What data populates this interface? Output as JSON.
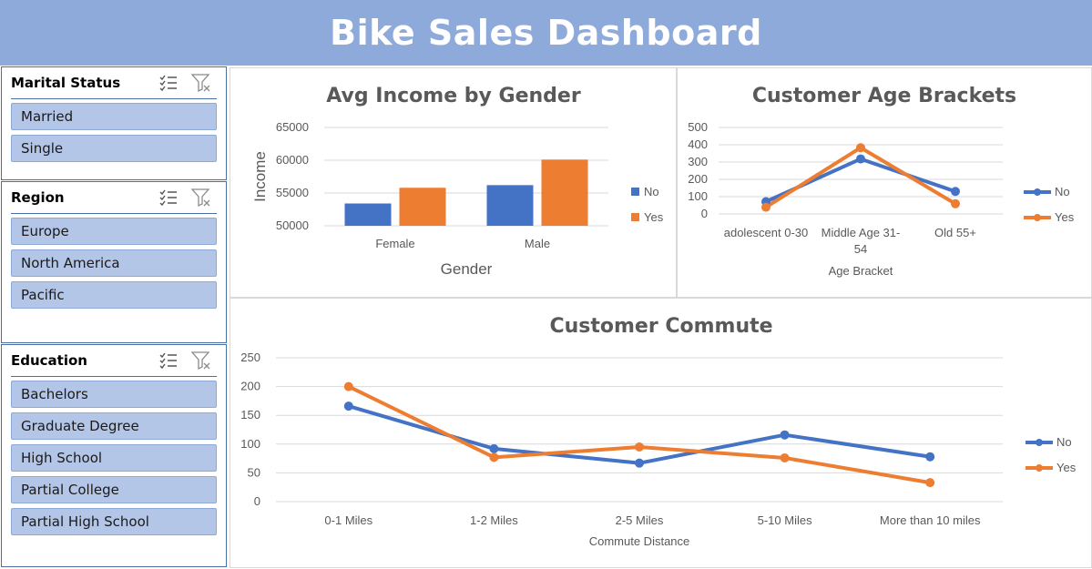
{
  "header": {
    "title": "Bike Sales Dashboard"
  },
  "slicers": {
    "marital": {
      "title": "Marital Status",
      "items": [
        "Married",
        "Single"
      ]
    },
    "region": {
      "title": "Region",
      "items": [
        "Europe",
        "North America",
        "Pacific"
      ]
    },
    "education": {
      "title": "Education",
      "items": [
        "Bachelors",
        "Graduate Degree",
        "High School",
        "Partial College",
        "Partial High School"
      ]
    }
  },
  "colors": {
    "no": "#4472c4",
    "yes": "#ed7d31",
    "header": "#8eaadb",
    "slicer_item": "#b4c6e7"
  },
  "icons": {
    "multi_select": "multi-select-icon",
    "clear_filter": "clear-filter-icon"
  },
  "chart_data": [
    {
      "type": "bar",
      "title": "Avg Income by Gender",
      "xlabel": "Gender",
      "ylabel": "Income",
      "categories": [
        "Female",
        "Male"
      ],
      "series": [
        {
          "name": "No",
          "values": [
            53400,
            56200
          ]
        },
        {
          "name": "Yes",
          "values": [
            55800,
            60100
          ]
        }
      ],
      "ylim": [
        50000,
        65000
      ],
      "yticks": [
        "50000",
        "55000",
        "60000",
        "65000"
      ],
      "grid": true,
      "legend": "right"
    },
    {
      "type": "line",
      "title": "Customer Age Brackets",
      "xlabel": "Age Bracket",
      "ylabel": "",
      "categories": [
        "adolescent 0-30",
        "Middle Age 31-54",
        "Old 55+"
      ],
      "series": [
        {
          "name": "No",
          "values": [
            71,
            318,
            130
          ]
        },
        {
          "name": "Yes",
          "values": [
            39,
            383,
            59
          ]
        }
      ],
      "ylim": [
        0,
        500
      ],
      "yticks": [
        "0",
        "100",
        "200",
        "300",
        "400",
        "500"
      ],
      "grid": true,
      "legend": "right"
    },
    {
      "type": "line",
      "title": "Customer Commute",
      "xlabel": "Commute Distance",
      "ylabel": "",
      "categories": [
        "0-1 Miles",
        "1-2 Miles",
        "2-5 Miles",
        "5-10 Miles",
        "More than 10 miles"
      ],
      "series": [
        {
          "name": "No",
          "values": [
            166,
            92,
            67,
            116,
            78
          ]
        },
        {
          "name": "Yes",
          "values": [
            200,
            77,
            95,
            76,
            33
          ]
        }
      ],
      "ylim": [
        0,
        250
      ],
      "yticks": [
        "0",
        "50",
        "100",
        "150",
        "200",
        "250"
      ],
      "grid": true,
      "legend": "right"
    }
  ]
}
